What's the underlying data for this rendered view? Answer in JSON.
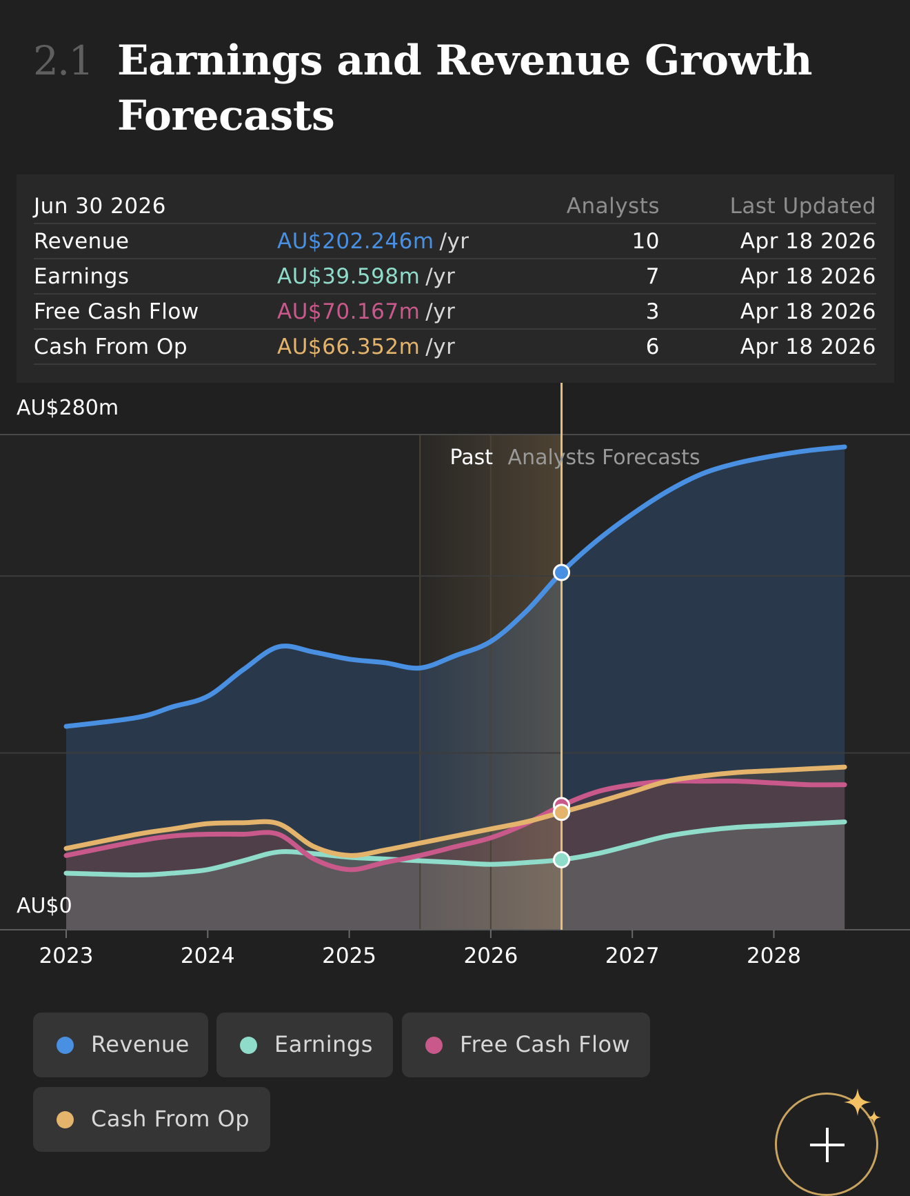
{
  "section": {
    "number": "2.1",
    "title": "Earnings and Revenue Growth Forecasts"
  },
  "table": {
    "date": "Jun 30 2026",
    "analysts_header": "Analysts",
    "updated_header": "Last Updated",
    "unit": "/yr",
    "rows": [
      {
        "label": "Revenue",
        "value": "AU$202.246m",
        "analysts": "10",
        "updated": "Apr 18 2026",
        "color": "#4a90e2"
      },
      {
        "label": "Earnings",
        "value": "AU$39.598m",
        "analysts": "7",
        "updated": "Apr 18 2026",
        "color": "#8fdcca"
      },
      {
        "label": "Free Cash Flow",
        "value": "AU$70.167m",
        "analysts": "3",
        "updated": "Apr 18 2026",
        "color": "#c9598b"
      },
      {
        "label": "Cash From Op",
        "value": "AU$66.352m",
        "analysts": "6",
        "updated": "Apr 18 2026",
        "color": "#e4b46c"
      }
    ]
  },
  "chart_data": {
    "type": "area",
    "y_axis_labels": {
      "top": "AU$280m",
      "bottom": "AU$0"
    },
    "ylim": [
      0,
      280
    ],
    "xlim": [
      2023,
      2028.5
    ],
    "x_tick_labels": [
      "2023",
      "2024",
      "2025",
      "2026",
      "2027",
      "2028"
    ],
    "x_ticks": [
      2023,
      2024,
      2025,
      2026,
      2027,
      2028
    ],
    "gridlines": [
      200,
      100
    ],
    "past_label": "Past",
    "forecast_label": "Analysts Forecasts",
    "past_region": [
      2025.5,
      2026.5
    ],
    "current_x": 2026.5,
    "series": [
      {
        "name": "Revenue",
        "color": "#4a90e2",
        "x": [
          2023,
          2023.5,
          2023.75,
          2024,
          2024.25,
          2024.5,
          2024.75,
          2025,
          2025.25,
          2025.5,
          2025.75,
          2026,
          2026.25,
          2026.5,
          2026.75,
          2027,
          2027.25,
          2027.5,
          2027.75,
          2028,
          2028.25,
          2028.5
        ],
        "y": [
          115,
          120,
          126,
          132,
          147,
          160,
          157,
          153,
          151,
          148,
          155,
          163,
          180,
          202,
          220,
          235,
          248,
          258,
          264,
          268,
          271,
          273
        ]
      },
      {
        "name": "Earnings",
        "color": "#8fdcca",
        "x": [
          2023,
          2023.5,
          2023.75,
          2024,
          2024.25,
          2024.5,
          2024.75,
          2025,
          2025.25,
          2025.5,
          2025.75,
          2026,
          2026.25,
          2026.5,
          2026.75,
          2027,
          2027.25,
          2027.5,
          2027.75,
          2028,
          2028.25,
          2028.5
        ],
        "y": [
          32,
          31,
          32,
          34,
          39,
          44,
          43,
          41,
          40,
          39,
          38,
          37,
          38,
          39.6,
          43,
          48,
          53,
          56,
          58,
          59,
          60,
          61
        ]
      },
      {
        "name": "Free Cash Flow",
        "color": "#c9598b",
        "x": [
          2023,
          2023.5,
          2023.75,
          2024,
          2024.25,
          2024.5,
          2024.75,
          2025,
          2025.25,
          2025.5,
          2025.75,
          2026,
          2026.25,
          2026.5,
          2026.75,
          2027,
          2027.25,
          2027.5,
          2027.75,
          2028,
          2028.25,
          2028.5
        ],
        "y": [
          42,
          50,
          53,
          54,
          54,
          54,
          40,
          34,
          38,
          42,
          47,
          52,
          60,
          70.2,
          78,
          82,
          84,
          84,
          84,
          83,
          82,
          82
        ]
      },
      {
        "name": "Cash From Op",
        "color": "#e4b46c",
        "x": [
          2023,
          2023.5,
          2023.75,
          2024,
          2024.25,
          2024.5,
          2024.75,
          2025,
          2025.25,
          2025.5,
          2025.75,
          2026,
          2026.25,
          2026.5,
          2026.75,
          2027,
          2027.25,
          2027.5,
          2027.75,
          2028,
          2028.25,
          2028.5
        ],
        "y": [
          46,
          54,
          57,
          60,
          60.5,
          60,
          47,
          42,
          45,
          49,
          53,
          57,
          61,
          66.4,
          72,
          78,
          84,
          87,
          89,
          90,
          91,
          92
        ]
      }
    ]
  },
  "legend": [
    {
      "label": "Revenue",
      "color": "#4a90e2"
    },
    {
      "label": "Earnings",
      "color": "#8fdcca"
    },
    {
      "label": "Free Cash Flow",
      "color": "#c9598b"
    },
    {
      "label": "Cash From Op",
      "color": "#e4b46c"
    }
  ],
  "fab": {
    "icon": "plus-icon",
    "badge_icon": "sparkle-icon",
    "accent_color": "#c9a360",
    "badge_color": "#f4c264"
  }
}
